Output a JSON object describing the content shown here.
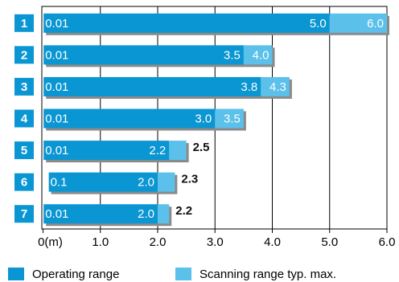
{
  "chart_data": {
    "type": "range-bar",
    "categories": [
      "1",
      "2",
      "3",
      "4",
      "5",
      "6",
      "7"
    ],
    "series": [
      {
        "name": "Operating range",
        "color": "#0a96d2",
        "start": [
          0.01,
          0.01,
          0.01,
          0.01,
          0.01,
          0.1,
          0.01
        ],
        "start_labels": [
          "0.01",
          "0.01",
          "0.01",
          "0.01",
          "0.01",
          "0.1",
          "0.01"
        ],
        "values": [
          5,
          3.5,
          3.8,
          3,
          2.2,
          2,
          2
        ],
        "value_labels": [
          "5.0",
          "3.5",
          "3.8",
          "3.0",
          "2.2",
          "2.0",
          "2.0"
        ]
      },
      {
        "name": "Scanning range typ. max.",
        "color": "#5bc0ea",
        "values": [
          6,
          4,
          4.3,
          3.5,
          2.5,
          2.3,
          2.2
        ],
        "value_labels": [
          "6.0",
          "4.0",
          "4.3",
          "3.5",
          "2.5",
          "2.3",
          "2.2"
        ]
      }
    ],
    "xlim": [
      0,
      6
    ],
    "xticks": [
      {
        "value": 0,
        "label": "0(m)"
      },
      {
        "value": 1,
        "label": "1.0"
      },
      {
        "value": 2,
        "label": "2.0"
      },
      {
        "value": 3,
        "label": "3.0"
      },
      {
        "value": 4,
        "label": "4.0"
      },
      {
        "value": 5,
        "label": "5.0"
      },
      {
        "value": 6,
        "label": "6.0"
      }
    ],
    "grid": true
  }
}
